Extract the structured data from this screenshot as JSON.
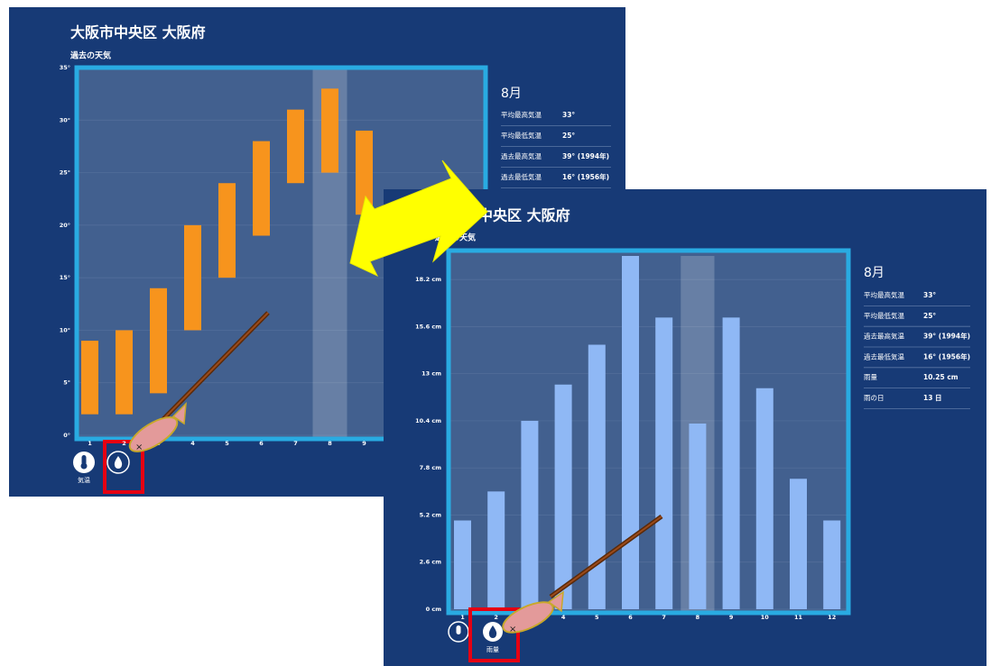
{
  "panels": [
    {
      "title": "大阪市中央区 大阪府",
      "subtitle": "過去の天気",
      "info_month": "8月",
      "info_rows": [
        [
          "平均最高気温",
          "33°"
        ],
        [
          "平均最低気温",
          "25°"
        ],
        [
          "過去最高気温",
          "39° (1994年)"
        ],
        [
          "過去最低気温",
          "16° (1956年)"
        ]
      ],
      "icon_label": "気温"
    },
    {
      "title": "大阪市中央区 大阪府",
      "subtitle": "過去の天気",
      "info_month": "8月",
      "info_rows": [
        [
          "平均最高気温",
          "33°"
        ],
        [
          "平均最低気温",
          "25°"
        ],
        [
          "過去最高気温",
          "39° (1994年)"
        ],
        [
          "過去最低気温",
          "16° (1956年)"
        ],
        [
          "雨量",
          "10.25 cm"
        ],
        [
          "雨の日",
          "13 日"
        ]
      ],
      "icon_label": "雨量"
    }
  ],
  "chart_data": [
    {
      "type": "range_bar",
      "categories": [
        "1",
        "2",
        "3",
        "4",
        "5",
        "6",
        "7",
        "8",
        "9"
      ],
      "lows": [
        2,
        2,
        4,
        10,
        15,
        19,
        24,
        25,
        21
      ],
      "highs": [
        9,
        10,
        14,
        20,
        24,
        28,
        31,
        33,
        29
      ],
      "color": "#f7941d",
      "highlight": "8",
      "grid": true,
      "ylim": [
        0,
        35
      ],
      "yticks": [
        {
          "value": 0,
          "label": "0°"
        },
        {
          "value": 5,
          "label": "5°"
        },
        {
          "value": 10,
          "label": "10°"
        },
        {
          "value": 15,
          "label": "15°"
        },
        {
          "value": 20,
          "label": "20°"
        },
        {
          "value": 25,
          "label": "25°"
        },
        {
          "value": 30,
          "label": "30°"
        },
        {
          "value": 35,
          "label": "35°"
        }
      ]
    },
    {
      "type": "bar",
      "categories": [
        "1",
        "2",
        "3",
        "4",
        "5",
        "6",
        "7",
        "8",
        "9",
        "10",
        "11",
        "12"
      ],
      "values": [
        4.9,
        6.5,
        10.4,
        12.4,
        14.6,
        19.5,
        16.1,
        10.25,
        16.1,
        12.2,
        7.2,
        4.9
      ],
      "color": "#8fb8f5",
      "highlight": "8",
      "grid": true,
      "ylim": [
        0,
        19.5
      ],
      "yticks": [
        {
          "value": 0,
          "label": "0 cm"
        },
        {
          "value": 2.6,
          "label": "2.6 cm"
        },
        {
          "value": 5.2,
          "label": "5.2 cm"
        },
        {
          "value": 7.8,
          "label": "7.8 cm"
        },
        {
          "value": 10.4,
          "label": "10.4 cm"
        },
        {
          "value": 13,
          "label": "13 cm"
        },
        {
          "value": 15.6,
          "label": "15.6 cm"
        },
        {
          "value": 18.2,
          "label": "18.2 cm"
        }
      ]
    }
  ]
}
